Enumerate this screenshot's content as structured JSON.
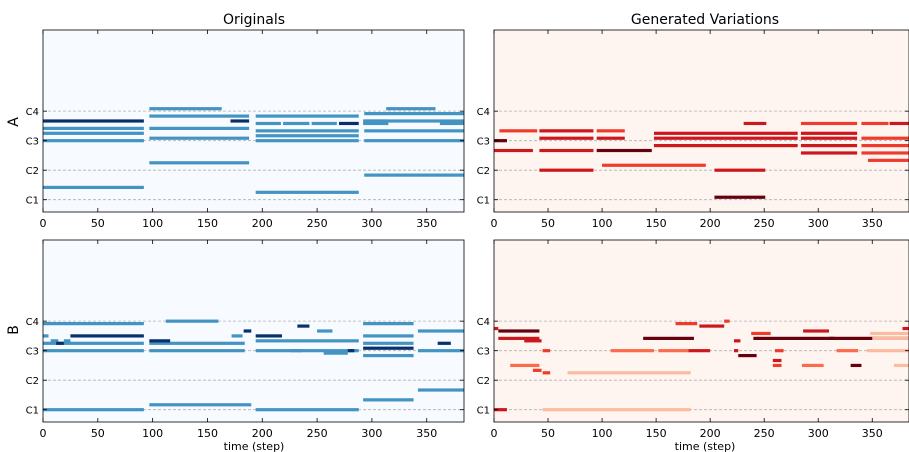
{
  "titles": {
    "left": "Originals",
    "right": "Generated Variations"
  },
  "row_labels": [
    "A",
    "B"
  ],
  "xlabel": "time (step)",
  "colors": {
    "originals_bg": "#f7fbff",
    "generated_bg": "#fff5f0",
    "grid": "#b0b0b0",
    "blues": [
      "#4393c3",
      "#08306b"
    ],
    "reds": [
      "#fcbba1",
      "#fb6a4a",
      "#ef3b2c",
      "#cb181d",
      "#67000d"
    ]
  },
  "chart_data": [
    {
      "type": "piano-roll",
      "panel": "A-originals",
      "xlim": [
        0,
        384
      ],
      "ylim": [
        43,
        117
      ],
      "xticks": [
        0,
        50,
        100,
        150,
        200,
        250,
        300,
        350
      ],
      "yticks": [
        {
          "label": "C1",
          "pitch": 48
        },
        {
          "label": "C2",
          "pitch": 60
        },
        {
          "label": "C3",
          "pitch": 72
        },
        {
          "label": "C4",
          "pitch": 84
        }
      ],
      "grid": "horizontal dashed at C-octaves",
      "notes": [
        [
          0,
          92,
          80,
          1
        ],
        [
          0,
          92,
          77,
          0
        ],
        [
          0,
          92,
          75,
          0
        ],
        [
          0,
          92,
          72,
          0
        ],
        [
          0,
          92,
          53,
          0
        ],
        [
          97,
          163,
          85,
          0
        ],
        [
          97,
          188,
          82,
          0
        ],
        [
          97,
          188,
          77,
          0
        ],
        [
          97,
          188,
          73,
          0
        ],
        [
          97,
          188,
          63,
          0
        ],
        [
          171,
          188,
          80,
          1
        ],
        [
          194,
          288,
          82,
          0
        ],
        [
          194,
          288,
          76,
          0
        ],
        [
          194,
          288,
          74,
          0
        ],
        [
          194,
          288,
          72,
          0
        ],
        [
          194,
          288,
          51,
          0
        ],
        [
          194,
          217,
          79,
          0
        ],
        [
          219,
          243,
          79,
          0
        ],
        [
          245,
          268,
          79,
          0
        ],
        [
          270,
          288,
          79,
          1
        ],
        [
          293,
          388,
          83,
          0
        ],
        [
          293,
          388,
          80,
          0
        ],
        [
          293,
          388,
          76,
          0
        ],
        [
          293,
          388,
          72,
          0
        ],
        [
          293,
          388,
          58,
          0
        ],
        [
          292,
          315,
          79,
          0
        ],
        [
          292,
          315,
          80,
          0
        ],
        [
          313,
          358,
          85,
          0
        ],
        [
          362,
          388,
          79,
          0
        ]
      ]
    },
    {
      "type": "piano-roll",
      "panel": "A-generated",
      "xlim": [
        0,
        384
      ],
      "ylim": [
        43,
        117
      ],
      "xticks": [
        0,
        50,
        100,
        150,
        200,
        250,
        300,
        350
      ],
      "yticks": [
        {
          "label": "C1",
          "pitch": 48
        },
        {
          "label": "C2",
          "pitch": 60
        },
        {
          "label": "C3",
          "pitch": 72
        },
        {
          "label": "C4",
          "pitch": 84
        }
      ],
      "grid": "horizontal dashed at C-octaves",
      "notes": [
        [
          5,
          40,
          76,
          2
        ],
        [
          42,
          92,
          76,
          3
        ],
        [
          95,
          121,
          76,
          2
        ],
        [
          0,
          12,
          72,
          4
        ],
        [
          42,
          92,
          73,
          3
        ],
        [
          95,
          121,
          73,
          3
        ],
        [
          0,
          36,
          68,
          3
        ],
        [
          42,
          92,
          68,
          3
        ],
        [
          95,
          146,
          68,
          4
        ],
        [
          42,
          92,
          60,
          3
        ],
        [
          100,
          196,
          62,
          2
        ],
        [
          204,
          251,
          60,
          3
        ],
        [
          204,
          251,
          49,
          4
        ],
        [
          148,
          281,
          75,
          3
        ],
        [
          148,
          281,
          73,
          3
        ],
        [
          148,
          281,
          70,
          3
        ],
        [
          231,
          252,
          79,
          3
        ],
        [
          284,
          336,
          79,
          2
        ],
        [
          284,
          336,
          75,
          3
        ],
        [
          284,
          336,
          73,
          3
        ],
        [
          284,
          336,
          70,
          3
        ],
        [
          284,
          336,
          67,
          3
        ],
        [
          340,
          365,
          79,
          2
        ],
        [
          366,
          388,
          79,
          3
        ],
        [
          340,
          388,
          73,
          2
        ],
        [
          340,
          388,
          70,
          2
        ],
        [
          340,
          388,
          67,
          2
        ],
        [
          346,
          388,
          64,
          2
        ]
      ]
    },
    {
      "type": "piano-roll",
      "panel": "B-originals",
      "xlim": [
        0,
        384
      ],
      "ylim": [
        43,
        117
      ],
      "xticks": [
        0,
        50,
        100,
        150,
        200,
        250,
        300,
        350
      ],
      "yticks": [
        {
          "label": "C1",
          "pitch": 48
        },
        {
          "label": "C2",
          "pitch": 60
        },
        {
          "label": "C3",
          "pitch": 72
        },
        {
          "label": "C4",
          "pitch": 84
        }
      ],
      "grid": "horizontal dashed at C-octaves",
      "notes": [
        [
          0,
          92,
          83,
          0
        ],
        [
          0,
          92,
          75,
          0
        ],
        [
          0,
          92,
          72,
          0
        ],
        [
          0,
          92,
          48,
          0
        ],
        [
          0,
          5,
          78,
          0
        ],
        [
          7,
          14,
          76,
          0
        ],
        [
          12,
          19,
          75,
          1
        ],
        [
          19,
          25,
          76,
          0
        ],
        [
          25,
          92,
          78,
          1
        ],
        [
          97,
          184,
          75,
          0
        ],
        [
          97,
          184,
          72,
          0
        ],
        [
          97,
          116,
          76,
          1
        ],
        [
          112,
          160,
          84,
          0
        ],
        [
          97,
          190,
          50,
          0
        ],
        [
          172,
          182,
          78,
          0
        ],
        [
          183,
          190,
          80,
          1
        ],
        [
          194,
          288,
          76,
          0
        ],
        [
          194,
          288,
          72,
          0
        ],
        [
          194,
          288,
          48,
          0
        ],
        [
          194,
          218,
          78,
          1
        ],
        [
          226,
          236,
          72,
          0
        ],
        [
          232,
          243,
          82,
          1
        ],
        [
          250,
          264,
          80,
          0
        ],
        [
          256,
          278,
          71,
          0
        ],
        [
          278,
          284,
          72,
          1
        ],
        [
          292,
          338,
          83,
          0
        ],
        [
          292,
          338,
          78,
          0
        ],
        [
          292,
          338,
          75,
          0
        ],
        [
          292,
          338,
          73,
          1
        ],
        [
          292,
          338,
          70,
          0
        ],
        [
          292,
          338,
          52,
          0
        ],
        [
          342,
          388,
          80,
          0
        ],
        [
          342,
          388,
          72,
          0
        ],
        [
          342,
          388,
          56,
          0
        ],
        [
          360,
          372,
          75,
          1
        ]
      ]
    },
    {
      "type": "piano-roll",
      "panel": "B-generated",
      "xlim": [
        0,
        384
      ],
      "ylim": [
        43,
        117
      ],
      "xticks": [
        0,
        50,
        100,
        150,
        200,
        250,
        300,
        350
      ],
      "yticks": [
        {
          "label": "C1",
          "pitch": 48
        },
        {
          "label": "C2",
          "pitch": 60
        },
        {
          "label": "C3",
          "pitch": 72
        },
        {
          "label": "C4",
          "pitch": 84
        }
      ],
      "grid": "horizontal dashed at C-octaves",
      "notes": [
        [
          0,
          4,
          81,
          3
        ],
        [
          4,
          42,
          80,
          4
        ],
        [
          4,
          42,
          77,
          3
        ],
        [
          28,
          44,
          76,
          3
        ],
        [
          15,
          42,
          66,
          1
        ],
        [
          36,
          44,
          64,
          2
        ],
        [
          45,
          52,
          72,
          2
        ],
        [
          45,
          52,
          63,
          2
        ],
        [
          0,
          12,
          48,
          3
        ],
        [
          45,
          182,
          48,
          0
        ],
        [
          68,
          182,
          63,
          0
        ],
        [
          108,
          148,
          72,
          1
        ],
        [
          138,
          185,
          77,
          4
        ],
        [
          152,
          180,
          72,
          1
        ],
        [
          180,
          200,
          72,
          3
        ],
        [
          168,
          188,
          83,
          2
        ],
        [
          190,
          213,
          82,
          3
        ],
        [
          213,
          218,
          84,
          2
        ],
        [
          222,
          228,
          76,
          3
        ],
        [
          222,
          226,
          72,
          3
        ],
        [
          226,
          243,
          70,
          4
        ],
        [
          238,
          256,
          79,
          2
        ],
        [
          240,
          245,
          77,
          4
        ],
        [
          244,
          315,
          77,
          4
        ],
        [
          260,
          268,
          72,
          2
        ],
        [
          258,
          266,
          68,
          3
        ],
        [
          258,
          266,
          66,
          2
        ],
        [
          286,
          310,
          80,
          3
        ],
        [
          285,
          305,
          66,
          1
        ],
        [
          310,
          384,
          77,
          4
        ],
        [
          317,
          337,
          72,
          1
        ],
        [
          330,
          340,
          66,
          4
        ],
        [
          348,
          388,
          79,
          0
        ],
        [
          350,
          388,
          77,
          0
        ],
        [
          345,
          388,
          72,
          0
        ],
        [
          370,
          388,
          66,
          0
        ],
        [
          378,
          388,
          81,
          3
        ]
      ]
    }
  ]
}
